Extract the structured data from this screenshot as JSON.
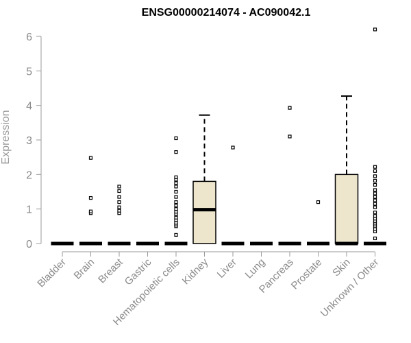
{
  "chart_data": {
    "type": "boxplot",
    "title": "ENSG00000214074 - AC090042.1",
    "xlabel": "",
    "ylabel": "Expression",
    "ylim": [
      0,
      6.3
    ],
    "yticks": [
      0,
      1,
      2,
      3,
      4,
      5,
      6
    ],
    "categories": [
      "Bladder",
      "Brain",
      "Breast",
      "Gastric",
      "Hematopoietic cells",
      "Kidney",
      "Liver",
      "Lung",
      "Pancreas",
      "Prostate",
      "Skin",
      "Unknown / Other"
    ],
    "boxes": [
      {
        "q1": 0,
        "median": 0,
        "q3": 0,
        "whisker_low": 0,
        "whisker_high": 0,
        "outliers": []
      },
      {
        "q1": 0,
        "median": 0,
        "q3": 0,
        "whisker_low": 0,
        "whisker_high": 0,
        "outliers": [
          0.88,
          0.93,
          1.32,
          2.48
        ]
      },
      {
        "q1": 0,
        "median": 0,
        "q3": 0,
        "whisker_low": 0,
        "whisker_high": 0,
        "outliers": [
          0.88,
          0.95,
          1.05,
          1.2,
          1.35,
          1.52,
          1.65
        ]
      },
      {
        "q1": 0,
        "median": 0,
        "q3": 0,
        "whisker_low": 0,
        "whisker_high": 0,
        "outliers": []
      },
      {
        "q1": 0,
        "median": 0,
        "q3": 0,
        "whisker_low": 0,
        "whisker_high": 0,
        "outliers": [
          0.25,
          0.5,
          0.55,
          0.6,
          0.68,
          0.75,
          0.85,
          0.92,
          1.0,
          1.1,
          1.2,
          1.35,
          1.5,
          1.65,
          1.75,
          1.85,
          1.92,
          2.65,
          3.05
        ]
      },
      {
        "q1": 0,
        "median": 0.98,
        "q3": 1.8,
        "whisker_low": 0,
        "whisker_high": 3.72,
        "outliers": []
      },
      {
        "q1": 0,
        "median": 0,
        "q3": 0,
        "whisker_low": 0,
        "whisker_high": 0,
        "outliers": [
          2.78
        ]
      },
      {
        "q1": 0,
        "median": 0,
        "q3": 0,
        "whisker_low": 0,
        "whisker_high": 0,
        "outliers": []
      },
      {
        "q1": 0,
        "median": 0,
        "q3": 0,
        "whisker_low": 0,
        "whisker_high": 0,
        "outliers": [
          3.1,
          3.93
        ]
      },
      {
        "q1": 0,
        "median": 0,
        "q3": 0,
        "whisker_low": 0,
        "whisker_high": 0,
        "outliers": [
          1.2
        ]
      },
      {
        "q1": 0,
        "median": 0,
        "q3": 2.0,
        "whisker_low": 0,
        "whisker_high": 4.27,
        "outliers": []
      },
      {
        "q1": 0,
        "median": 0,
        "q3": 0,
        "whisker_low": 0,
        "whisker_high": 0,
        "outliers": [
          0.15,
          0.35,
          0.42,
          0.5,
          0.55,
          0.6,
          0.65,
          0.72,
          0.8,
          0.9,
          1.05,
          1.15,
          1.25,
          1.35,
          1.45,
          1.55,
          1.7,
          1.82,
          1.95,
          2.1,
          2.22,
          6.2
        ]
      }
    ],
    "box_fill": "#ede6cd",
    "grid": false,
    "legend": "none"
  }
}
